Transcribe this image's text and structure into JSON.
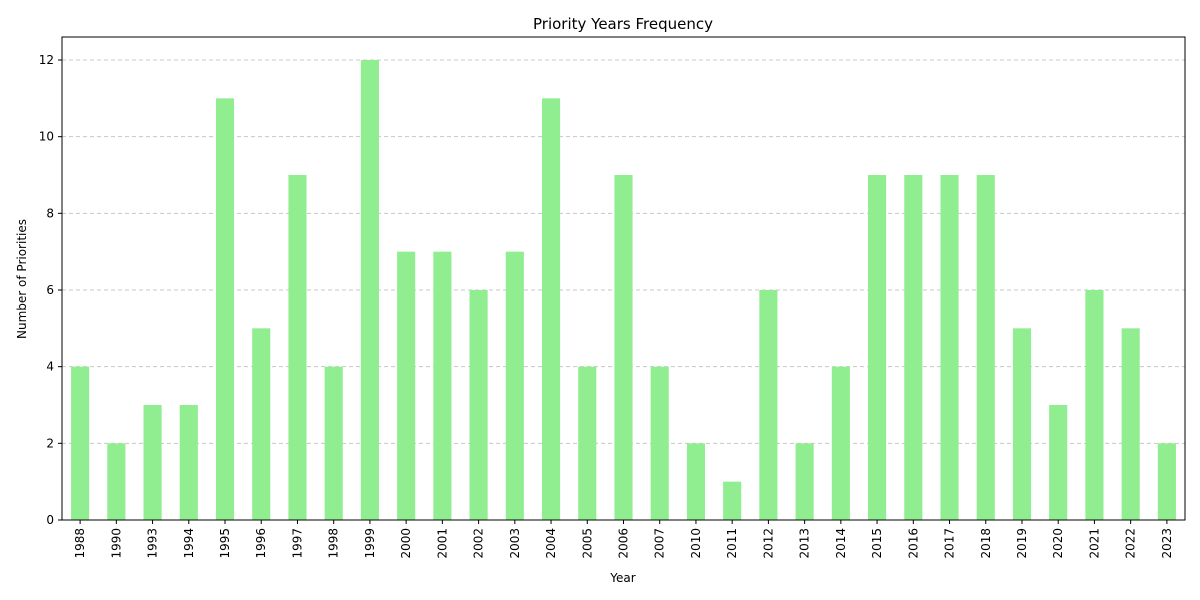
{
  "chart_data": {
    "type": "bar",
    "title": "Priority Years Frequency",
    "xlabel": "Year",
    "ylabel": "Number of Priorities",
    "categories": [
      "1988",
      "1990",
      "1993",
      "1994",
      "1995",
      "1996",
      "1997",
      "1998",
      "1999",
      "2000",
      "2001",
      "2002",
      "2003",
      "2004",
      "2005",
      "2006",
      "2007",
      "2010",
      "2011",
      "2012",
      "2013",
      "2014",
      "2015",
      "2016",
      "2017",
      "2018",
      "2019",
      "2020",
      "2021",
      "2022",
      "2023"
    ],
    "values": [
      4,
      2,
      3,
      3,
      11,
      5,
      9,
      4,
      12,
      7,
      7,
      6,
      7,
      11,
      4,
      9,
      4,
      2,
      1,
      6,
      2,
      4,
      9,
      9,
      9,
      9,
      5,
      3,
      6,
      5,
      2
    ],
    "ylim": [
      0,
      12.6
    ],
    "yticks": [
      0,
      2,
      4,
      6,
      8,
      10,
      12
    ],
    "grid": "y",
    "bar_color": "#90ee90",
    "grid_color": "#c8c8c8"
  }
}
